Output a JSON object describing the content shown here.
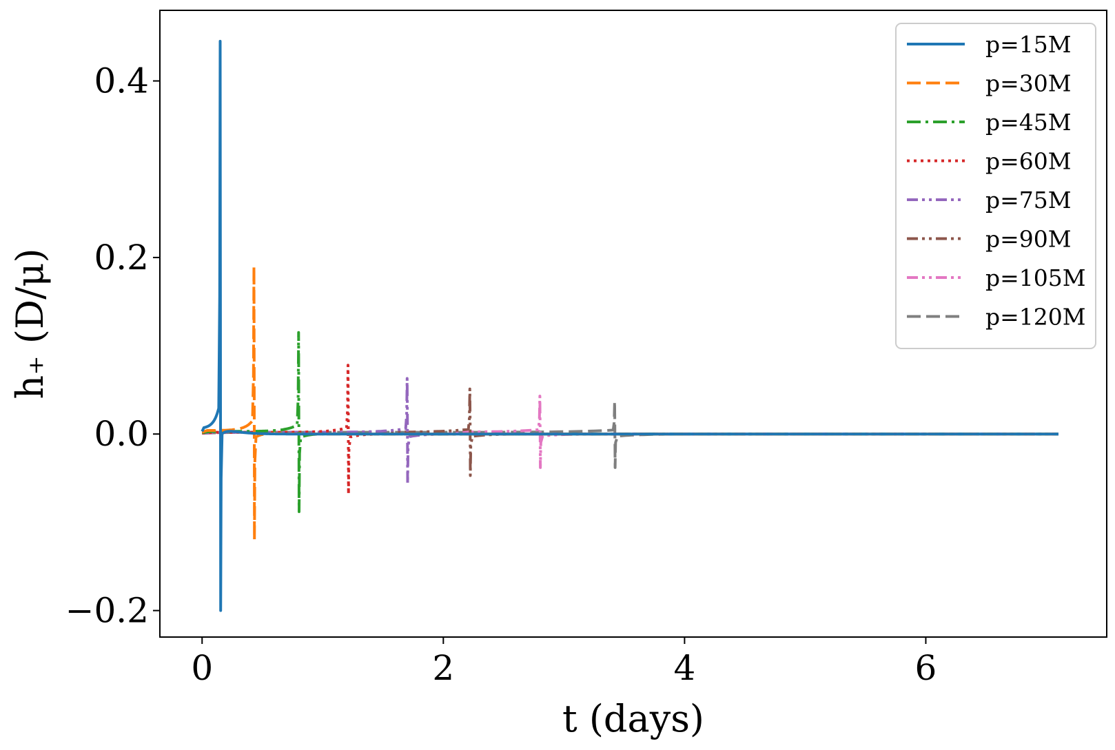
{
  "chart_data": {
    "type": "line",
    "title": "",
    "xlabel": "t (days)",
    "ylabel": "h₊ (D/μ)",
    "xlim": [
      -0.35,
      7.5
    ],
    "ylim": [
      -0.23,
      0.48
    ],
    "x_ticks": [
      0,
      2,
      4,
      6
    ],
    "y_ticks": [
      -0.2,
      0.0,
      0.2,
      0.4
    ],
    "x_tick_labels": [
      "0",
      "2",
      "4",
      "6"
    ],
    "y_tick_labels": [
      "−0.2",
      "0.0",
      "0.2",
      "0.4"
    ],
    "grid": false,
    "legend_position": "top-right",
    "x_end": 7.1,
    "series": [
      {
        "name": "p=15M",
        "color": "#1f77b4",
        "dash": "solid",
        "x_start": 0.0,
        "burst_time": 0.15,
        "peak": 0.445,
        "trough": -0.2,
        "pre_level": 0.006,
        "tail": 0.0
      },
      {
        "name": "p=30M",
        "color": "#ff7f0e",
        "dash": "dashed",
        "x_start": 0.0,
        "burst_time": 0.43,
        "peak": 0.19,
        "trough": -0.12,
        "pre_level": 0.004,
        "tail": 0.0
      },
      {
        "name": "p=45M",
        "color": "#2ca02c",
        "dash": "dashdot",
        "x_start": 0.0,
        "burst_time": 0.8,
        "peak": 0.115,
        "trough": -0.088,
        "pre_level": 0.003,
        "tail": 0.0
      },
      {
        "name": "p=60M",
        "color": "#d62728",
        "dash": "dotted",
        "x_start": 0.0,
        "burst_time": 1.21,
        "peak": 0.078,
        "trough": -0.068,
        "pre_level": 0.002,
        "tail": 0.0
      },
      {
        "name": "p=75M",
        "color": "#9467bd",
        "dash": "dashdotdot",
        "x_start": 0.0,
        "burst_time": 1.7,
        "peak": 0.063,
        "trough": -0.056,
        "pre_level": 0.002,
        "tail": 0.0
      },
      {
        "name": "p=90M",
        "color": "#8c564b",
        "dash": "dashdotdot",
        "x_start": 0.0,
        "burst_time": 2.22,
        "peak": 0.051,
        "trough": -0.047,
        "pre_level": 0.002,
        "tail": 0.0
      },
      {
        "name": "p=105M",
        "color": "#e377c2",
        "dash": "dashdotdot",
        "x_start": 0.0,
        "burst_time": 2.8,
        "peak": 0.043,
        "trough": -0.038,
        "pre_level": 0.002,
        "tail": 0.0
      },
      {
        "name": "p=120M",
        "color": "#7f7f7f",
        "dash": "dashed",
        "x_start": 0.0,
        "burst_time": 3.42,
        "peak": 0.037,
        "trough": -0.038,
        "pre_level": 0.002,
        "tail": 0.0
      }
    ]
  }
}
